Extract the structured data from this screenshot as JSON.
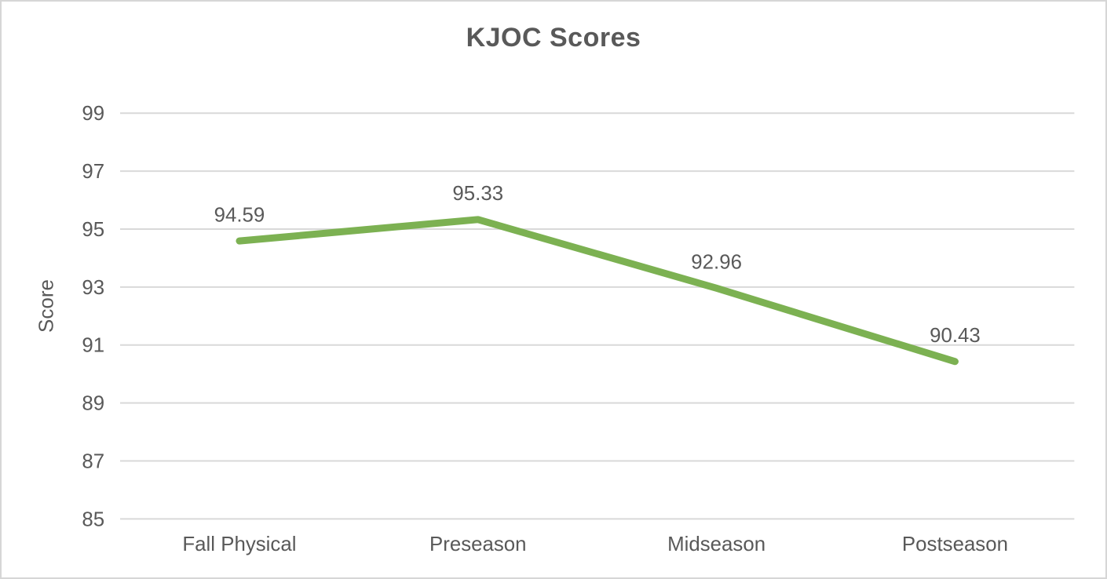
{
  "chart_data": {
    "type": "line",
    "title": "KJOC Scores",
    "xlabel": "",
    "ylabel": "Score",
    "categories": [
      "Fall Physical",
      "Preseason",
      "Midseason",
      "Postseason"
    ],
    "series": [
      {
        "values": [
          94.59,
          95.33,
          92.96,
          90.43
        ]
      }
    ],
    "data_labels": [
      "94.59",
      "95.33",
      "92.96",
      "90.43"
    ],
    "ylim": [
      85,
      99
    ],
    "yticks": [
      85,
      87,
      89,
      91,
      93,
      95,
      97,
      99
    ],
    "grid": true,
    "legend": false,
    "colors": {
      "line": "#7cb152",
      "text": "#595959",
      "gridline": "#d9d9d9",
      "frame_border": "#d6d6d6",
      "background": "#ffffff"
    }
  }
}
